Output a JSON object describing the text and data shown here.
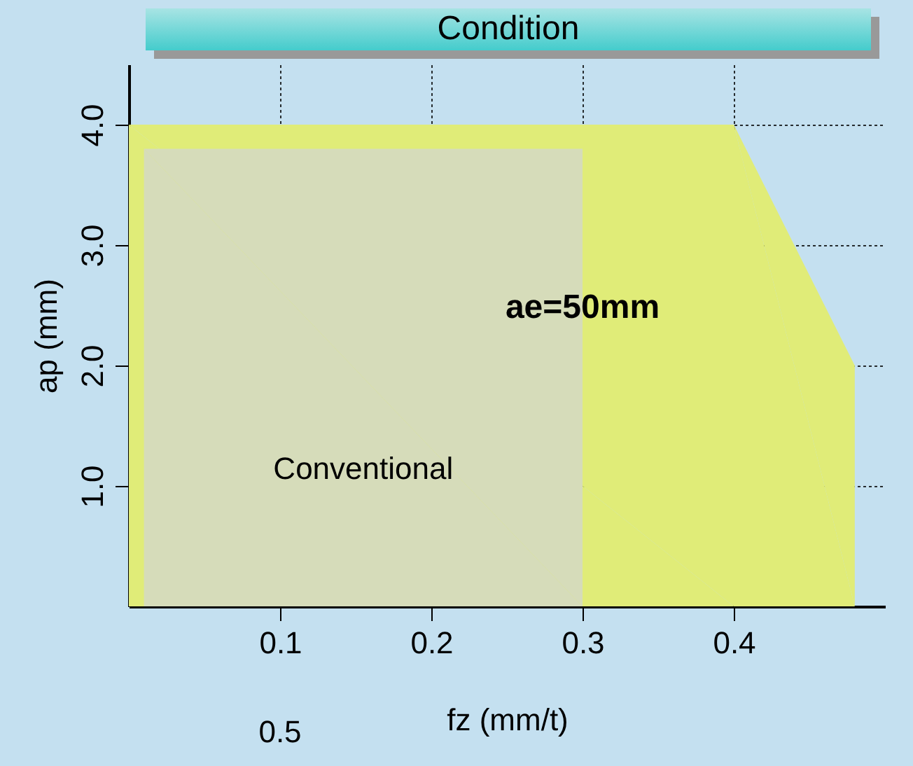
{
  "chart_data": {
    "type": "area",
    "title": "Condition",
    "xlabel": "fz  (mm/t)",
    "ylabel": "ap  (mm)",
    "series": [
      {
        "color": "#e0ec78",
        "x": [
          0,
          0.4,
          0.48
        ],
        "values": [
          4,
          4,
          2
        ]
      },
      {
        "name": "Conventional",
        "color": "#d6dcba",
        "x": [
          0.01,
          0.3
        ],
        "values": [
          3.8,
          3.8
        ]
      }
    ],
    "xlim": [
      0,
      0.5
    ],
    "ylim": [
      0,
      4.5
    ],
    "xticks": [
      {
        "value": 0.1,
        "label": "0.1"
      },
      {
        "value": 0.2,
        "label": "0.2"
      },
      {
        "value": 0.3,
        "label": "0.3"
      },
      {
        "value": 0.4,
        "label": "0.4"
      }
    ],
    "yticks": [
      {
        "value": 1,
        "label": "1.0"
      },
      {
        "value": 2,
        "label": "2.0"
      },
      {
        "value": 3,
        "label": "3.0"
      },
      {
        "value": 4,
        "label": "4.0"
      }
    ],
    "annotations": [
      "ae=50mm",
      "0.5"
    ],
    "grid": true
  }
}
